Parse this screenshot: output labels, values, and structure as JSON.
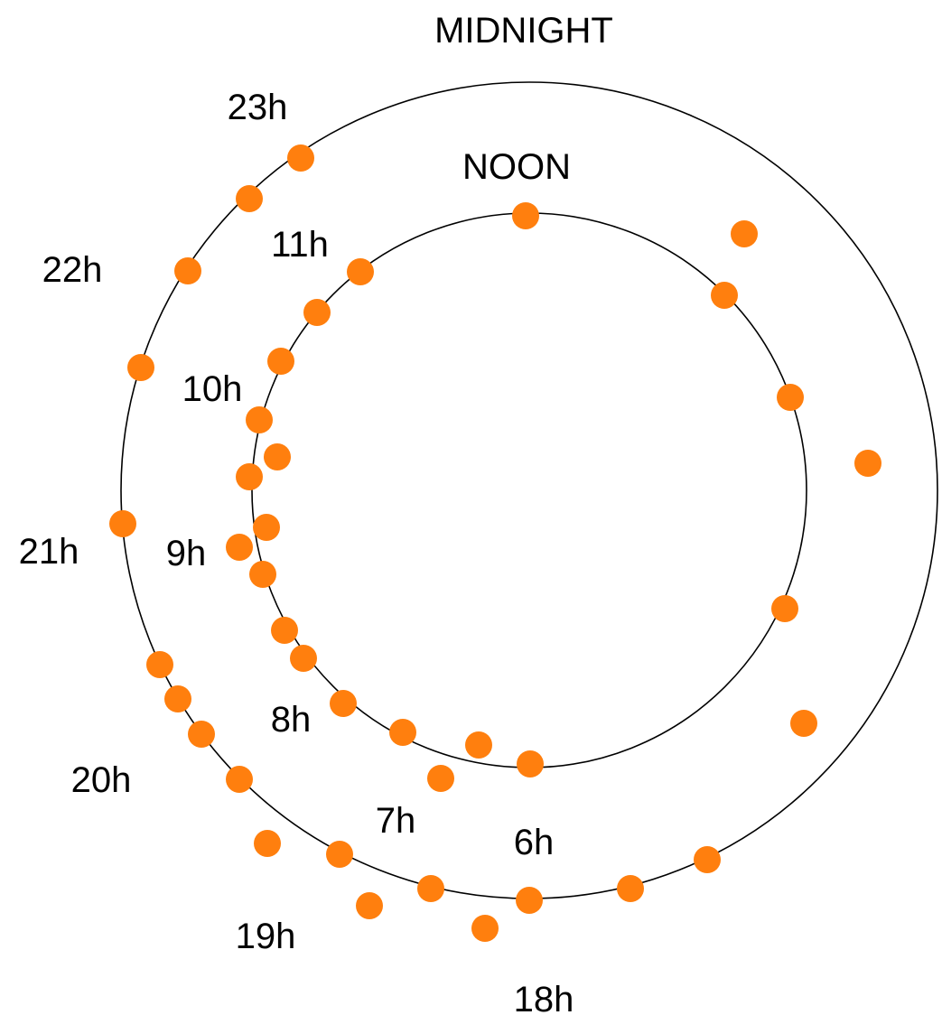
{
  "headings": {
    "outer": "MIDNIGHT",
    "inner": "NOON"
  },
  "outer_ring_labels": [
    "23h",
    "22h",
    "21h",
    "20h",
    "19h",
    "18h"
  ],
  "inner_ring_labels": [
    "11h",
    "10h",
    "9h",
    "8h",
    "7h",
    "6h"
  ],
  "colors": {
    "dot": "#ff7f0e",
    "ring": "#000000",
    "text": "#000000",
    "background": "#ffffff"
  }
}
